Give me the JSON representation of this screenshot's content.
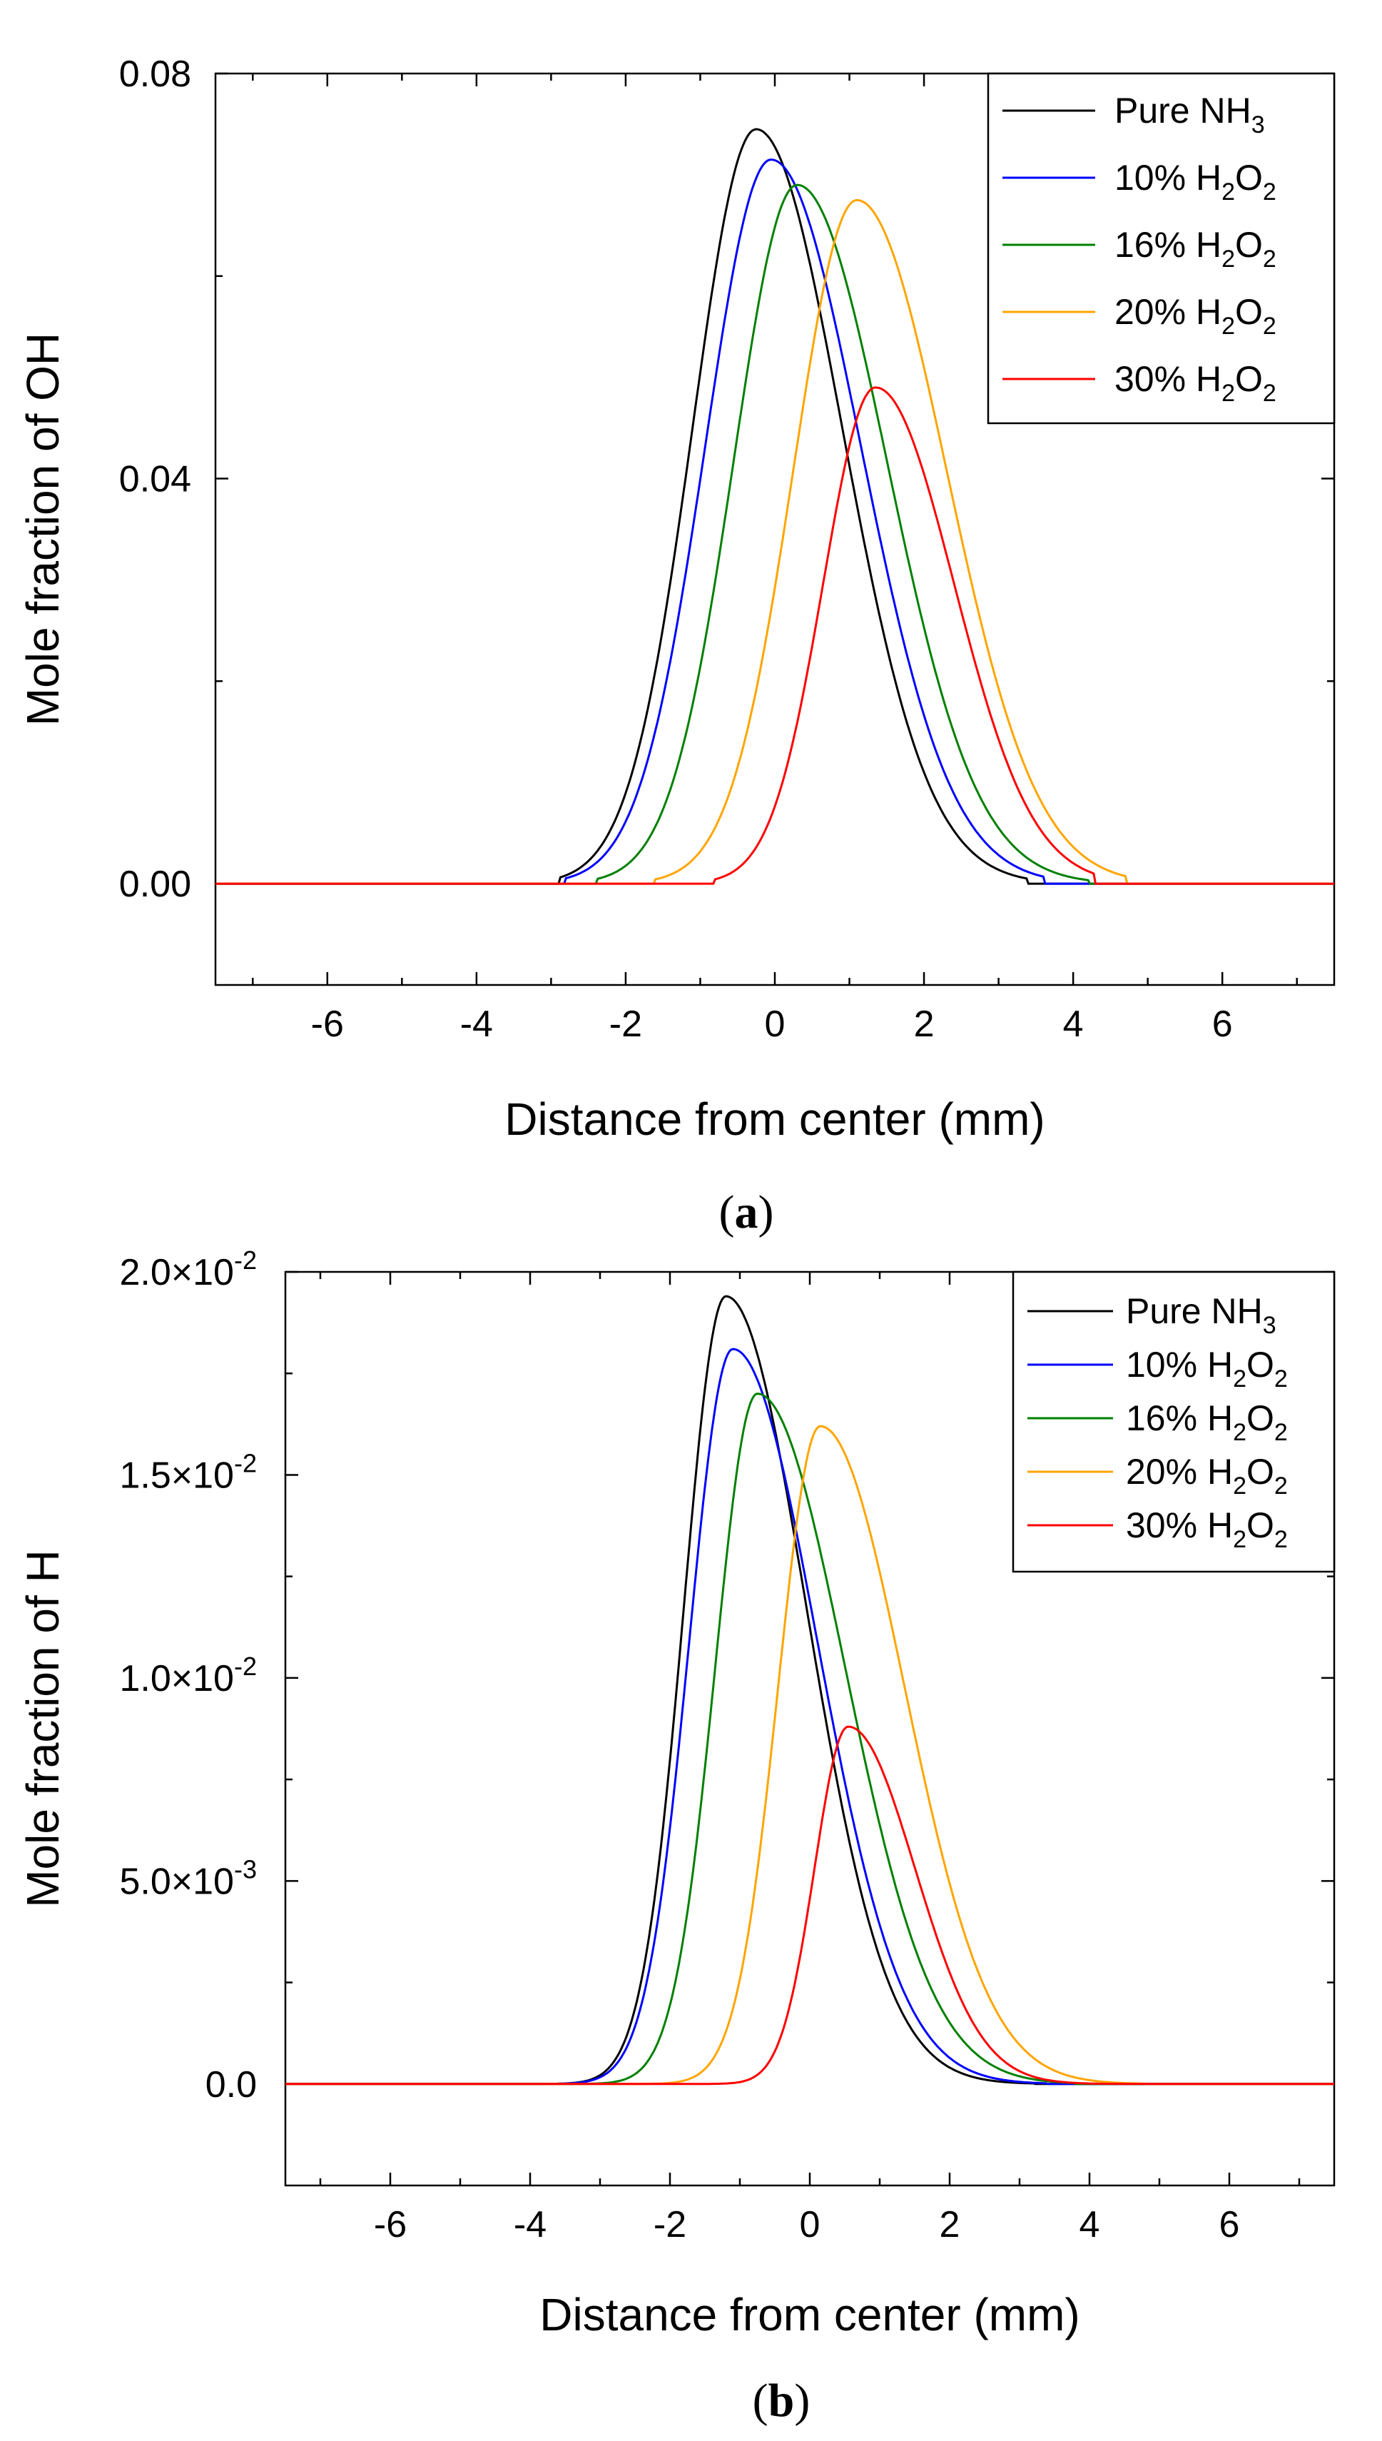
{
  "chart_data": [
    {
      "type": "line",
      "panel_label": "a",
      "xlabel": "Distance from center (mm)",
      "ylabel": "Mole fraction of OH",
      "xlim": [
        -7.5,
        7.5
      ],
      "ylim": [
        -0.01,
        0.08
      ],
      "xticks": [
        -6,
        -4,
        -2,
        0,
        2,
        4,
        6
      ],
      "xtick_labels": [
        "-6",
        "-4",
        "-2",
        "0",
        "2",
        "4",
        "6"
      ],
      "yticks": [
        0.0,
        0.04,
        0.08
      ],
      "ytick_labels": [
        "0.00",
        "0.04",
        "0.08"
      ],
      "legend_position": "top-right",
      "series": [
        {
          "name": "Pure NH3",
          "label_main": "Pure NH",
          "label_sub": "3",
          "label_rest": "",
          "color": "#000000",
          "peak_x": -0.25,
          "peak_y": 0.0745,
          "left_width": 0.85,
          "right_width": 1.15,
          "start_x": -2.9,
          "end_x": 3.4
        },
        {
          "name": "10% H2O2",
          "label_main": "10% H",
          "label_sub": "2",
          "label_rest": "O",
          "label_sub2": "2",
          "color": "#0000ff",
          "peak_x": -0.05,
          "peak_y": 0.0715,
          "left_width": 0.88,
          "right_width": 1.2,
          "start_x": -2.8,
          "end_x": 3.6
        },
        {
          "name": "16% H2O2",
          "label_main": "16% H",
          "label_sub": "2",
          "label_rest": "O",
          "label_sub2": "2",
          "color": "#008000",
          "peak_x": 0.3,
          "peak_y": 0.069,
          "left_width": 0.85,
          "right_width": 1.2,
          "start_x": -2.4,
          "end_x": 4.2
        },
        {
          "name": "20% H2O2",
          "label_main": "20% H",
          "label_sub": "2",
          "label_rest": "O",
          "label_sub2": "2",
          "color": "#ffa500",
          "peak_x": 1.1,
          "peak_y": 0.0675,
          "left_width": 0.85,
          "right_width": 1.2,
          "start_x": -1.6,
          "end_x": 4.7
        },
        {
          "name": "30% H2O2",
          "label_main": "30% H",
          "label_sub": "2",
          "label_rest": "O",
          "label_sub2": "2",
          "color": "#ff0000",
          "peak_x": 1.35,
          "peak_y": 0.049,
          "left_width": 0.7,
          "right_width": 1.05,
          "start_x": -0.8,
          "end_x": 4.3
        }
      ]
    },
    {
      "type": "line",
      "panel_label": "b",
      "xlabel": "Distance from center (mm)",
      "ylabel": "Mole fraction of H",
      "xlim": [
        -7.5,
        7.5
      ],
      "ylim": [
        -0.0025,
        0.02
      ],
      "xticks": [
        -6,
        -4,
        -2,
        0,
        2,
        4,
        6
      ],
      "xtick_labels": [
        "-6",
        "-4",
        "-2",
        "0",
        "2",
        "4",
        "6"
      ],
      "yticks": [
        0.0,
        0.005,
        0.01,
        0.015,
        0.02
      ],
      "ytick_labels": [
        {
          "main": "0.0",
          "exp": ""
        },
        {
          "main": "5.0×10",
          "exp": "-3"
        },
        {
          "main": "1.0×10",
          "exp": "-2"
        },
        {
          "main": "1.5×10",
          "exp": "-2"
        },
        {
          "main": "2.0×10",
          "exp": "-2"
        }
      ],
      "legend_position": "top-right",
      "series": [
        {
          "name": "Pure NH3",
          "label_main": "Pure NH",
          "label_sub": "3",
          "label_rest": "",
          "color": "#000000",
          "peak_x": -1.2,
          "peak_y": 0.0194,
          "left_width": 0.6,
          "right_width": 1.15,
          "start_x": -4.6,
          "end_x": 3.2
        },
        {
          "name": "10% H2O2",
          "label_main": "10% H",
          "label_sub": "2",
          "label_rest": "O",
          "label_sub2": "2",
          "color": "#0000ff",
          "peak_x": -1.1,
          "peak_y": 0.0181,
          "left_width": 0.62,
          "right_width": 1.2,
          "start_x": -4.6,
          "end_x": 3.4
        },
        {
          "name": "16% H2O2",
          "label_main": "16% H",
          "label_sub": "2",
          "label_rest": "O",
          "label_sub2": "2",
          "color": "#008000",
          "peak_x": -0.75,
          "peak_y": 0.017,
          "left_width": 0.6,
          "right_width": 1.25,
          "start_x": -4.3,
          "end_x": 3.8
        },
        {
          "name": "20% H2O2",
          "label_main": "20% H",
          "label_sub": "2",
          "label_rest": "O",
          "label_sub2": "2",
          "color": "#ffa500",
          "peak_x": 0.15,
          "peak_y": 0.0162,
          "left_width": 0.6,
          "right_width": 1.2,
          "start_x": -3.0,
          "end_x": 4.8
        },
        {
          "name": "30% H2O2",
          "label_main": "30% H",
          "label_sub": "2",
          "label_rest": "O",
          "label_sub2": "2",
          "color": "#ff0000",
          "peak_x": 0.55,
          "peak_y": 0.0088,
          "left_width": 0.48,
          "right_width": 0.95,
          "start_x": -2.0,
          "end_x": 4.5
        }
      ]
    }
  ]
}
